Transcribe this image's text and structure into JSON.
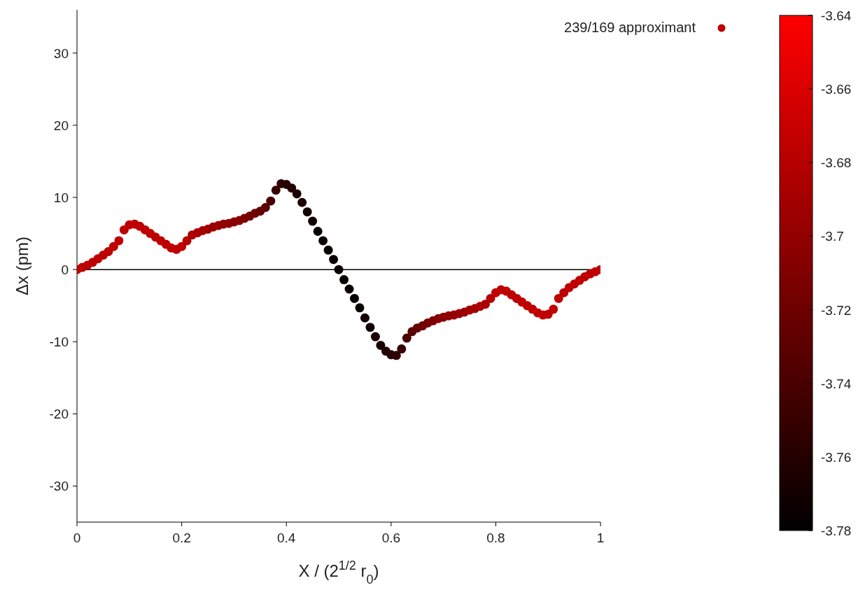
{
  "chart_data": {
    "type": "scatter",
    "xlabel": "X / (2$^{1/2}$ r$_{0}$)",
    "ylabel": "Δx (pm)",
    "x": [
      0,
      0.01,
      0.02,
      0.03,
      0.04,
      0.05,
      0.06,
      0.07,
      0.08,
      0.09,
      0.1,
      0.11,
      0.12,
      0.13,
      0.14,
      0.15,
      0.16,
      0.17,
      0.18,
      0.19,
      0.2,
      0.21,
      0.22,
      0.23,
      0.24,
      0.25,
      0.26,
      0.27,
      0.28,
      0.29,
      0.3,
      0.31,
      0.32,
      0.33,
      0.34,
      0.35,
      0.36,
      0.37,
      0.38,
      0.39,
      0.4,
      0.41,
      0.42,
      0.43,
      0.44,
      0.45,
      0.46,
      0.47,
      0.48,
      0.49,
      0.5,
      0.51,
      0.52,
      0.53,
      0.54,
      0.55,
      0.56,
      0.57,
      0.58,
      0.59,
      0.6,
      0.61,
      0.62,
      0.63,
      0.64,
      0.65,
      0.66,
      0.67,
      0.68,
      0.69,
      0.7,
      0.71,
      0.72,
      0.73,
      0.74,
      0.75,
      0.76,
      0.77,
      0.78,
      0.79,
      0.8,
      0.81,
      0.82,
      0.83,
      0.84,
      0.85,
      0.86,
      0.87,
      0.88,
      0.89,
      0.9,
      0.91,
      0.92,
      0.93,
      0.94,
      0.95,
      0.96,
      0.97,
      0.98,
      0.99,
      1
    ],
    "series": [
      {
        "name": "239/169 approximant",
        "values": [
          0,
          0.3,
          0.6,
          1,
          1.5,
          2,
          2.5,
          3.2,
          4,
          5.5,
          6.2,
          6.3,
          6,
          5.5,
          5,
          4.5,
          4,
          3.5,
          3,
          2.8,
          3.2,
          4,
          4.8,
          5.1,
          5.4,
          5.6,
          5.9,
          6.1,
          6.3,
          6.4,
          6.6,
          6.8,
          7.1,
          7.4,
          7.8,
          8.1,
          8.6,
          9.5,
          11,
          11.9,
          11.8,
          11.3,
          10.5,
          9.3,
          8,
          6.7,
          5.3,
          4,
          2.7,
          1.4,
          0,
          -1.4,
          -2.7,
          -4,
          -5.3,
          -6.7,
          -8,
          -9.3,
          -10.5,
          -11.3,
          -11.8,
          -11.9,
          -11,
          -9.5,
          -8.6,
          -8.1,
          -7.8,
          -7.4,
          -7.1,
          -6.8,
          -6.6,
          -6.4,
          -6.3,
          -6.1,
          -5.9,
          -5.6,
          -5.4,
          -5.1,
          -4.8,
          -4,
          -3.2,
          -2.8,
          -3,
          -3.5,
          -4,
          -4.5,
          -5,
          -5.5,
          -6,
          -6.3,
          -6.2,
          -5.5,
          -4,
          -3.2,
          -2.5,
          -2,
          -1.5,
          -1,
          -0.6,
          -0.3,
          0
        ],
        "cvalues": [
          -3.675,
          -3.675,
          -3.675,
          -3.675,
          -3.675,
          -3.675,
          -3.675,
          -3.675,
          -3.675,
          -3.675,
          -3.675,
          -3.675,
          -3.675,
          -3.675,
          -3.675,
          -3.675,
          -3.675,
          -3.675,
          -3.675,
          -3.675,
          -3.675,
          -3.68,
          -3.685,
          -3.685,
          -3.69,
          -3.69,
          -3.695,
          -3.695,
          -3.7,
          -3.7,
          -3.705,
          -3.705,
          -3.71,
          -3.715,
          -3.72,
          -3.725,
          -3.73,
          -3.74,
          -3.75,
          -3.755,
          -3.76,
          -3.76,
          -3.765,
          -3.765,
          -3.77,
          -3.77,
          -3.775,
          -3.775,
          -3.775,
          -3.775,
          -3.775,
          -3.775,
          -3.775,
          -3.775,
          -3.775,
          -3.77,
          -3.77,
          -3.765,
          -3.765,
          -3.76,
          -3.76,
          -3.755,
          -3.75,
          -3.74,
          -3.73,
          -3.725,
          -3.72,
          -3.715,
          -3.71,
          -3.705,
          -3.705,
          -3.7,
          -3.7,
          -3.695,
          -3.695,
          -3.69,
          -3.69,
          -3.685,
          -3.685,
          -3.68,
          -3.675,
          -3.675,
          -3.675,
          -3.675,
          -3.675,
          -3.675,
          -3.675,
          -3.675,
          -3.675,
          -3.675,
          -3.675,
          -3.675,
          -3.675,
          -3.675,
          -3.675,
          -3.675,
          -3.675,
          -3.675,
          -3.675,
          -3.675,
          -3.675
        ]
      }
    ],
    "xlim": [
      0,
      1
    ],
    "xticks": [
      0,
      0.2,
      0.4,
      0.6,
      0.8,
      1
    ],
    "ylim": [
      -35,
      36
    ],
    "yticks": [
      -30,
      -20,
      -10,
      0,
      10,
      20,
      30
    ],
    "clim": [
      -3.78,
      -3.64
    ],
    "cticks": [
      -3.78,
      -3.76,
      -3.74,
      -3.72,
      -3.7,
      -3.68,
      -3.66,
      -3.64
    ],
    "ref_lines": [
      {
        "axis": "y",
        "value": 0,
        "color": "#000000"
      }
    ],
    "marker": "circle",
    "legend": "top right",
    "grid": false
  }
}
